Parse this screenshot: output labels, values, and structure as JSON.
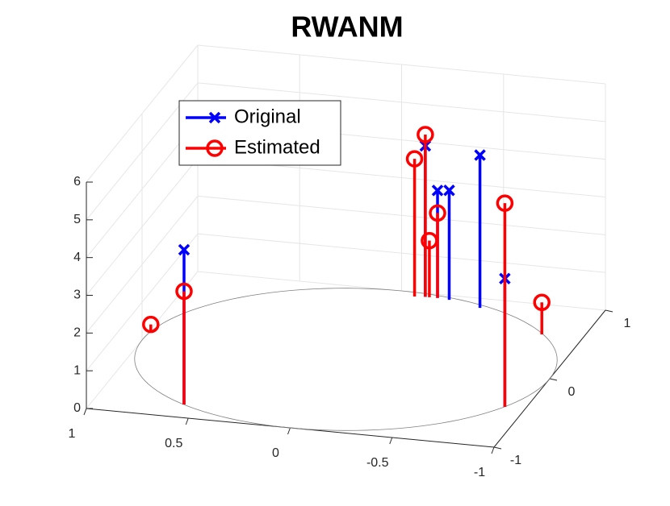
{
  "chart_data": {
    "type": "stem3",
    "title": "RWANM",
    "series": [
      {
        "name": "Original",
        "color": "#0000ff",
        "marker": "x",
        "x": [
          0.57,
          -0.13,
          -0.19,
          -0.25,
          -0.42,
          -0.9
        ],
        "y": [
          -0.82,
          0.95,
          0.95,
          0.94,
          0.87,
          -0.44
        ],
        "z": [
          4.1,
          4.0,
          2.85,
          2.9,
          4.05,
          3.4
        ]
      },
      {
        "name": "Estimated",
        "color": "#ff0000",
        "marker": "o",
        "x": [
          0.57,
          0.99,
          -0.08,
          -0.13,
          -0.15,
          -0.19,
          -0.9,
          -0.8
        ],
        "y": [
          -0.82,
          0.12,
          0.94,
          0.95,
          0.95,
          0.95,
          -0.44,
          0.59
        ],
        "z": [
          3.0,
          0.2,
          3.65,
          4.3,
          1.5,
          2.25,
          5.4,
          0.85
        ]
      }
    ],
    "xlim": [
      -1,
      1
    ],
    "xticks": [
      1,
      0.5,
      0,
      -0.5,
      -1
    ],
    "ylim": [
      -1,
      1
    ],
    "yticks": [
      -1,
      0,
      1
    ],
    "zlim": [
      0,
      6
    ],
    "zticks": [
      0,
      1,
      2,
      3,
      4,
      5,
      6
    ],
    "grid": true,
    "legend": "top-left"
  }
}
